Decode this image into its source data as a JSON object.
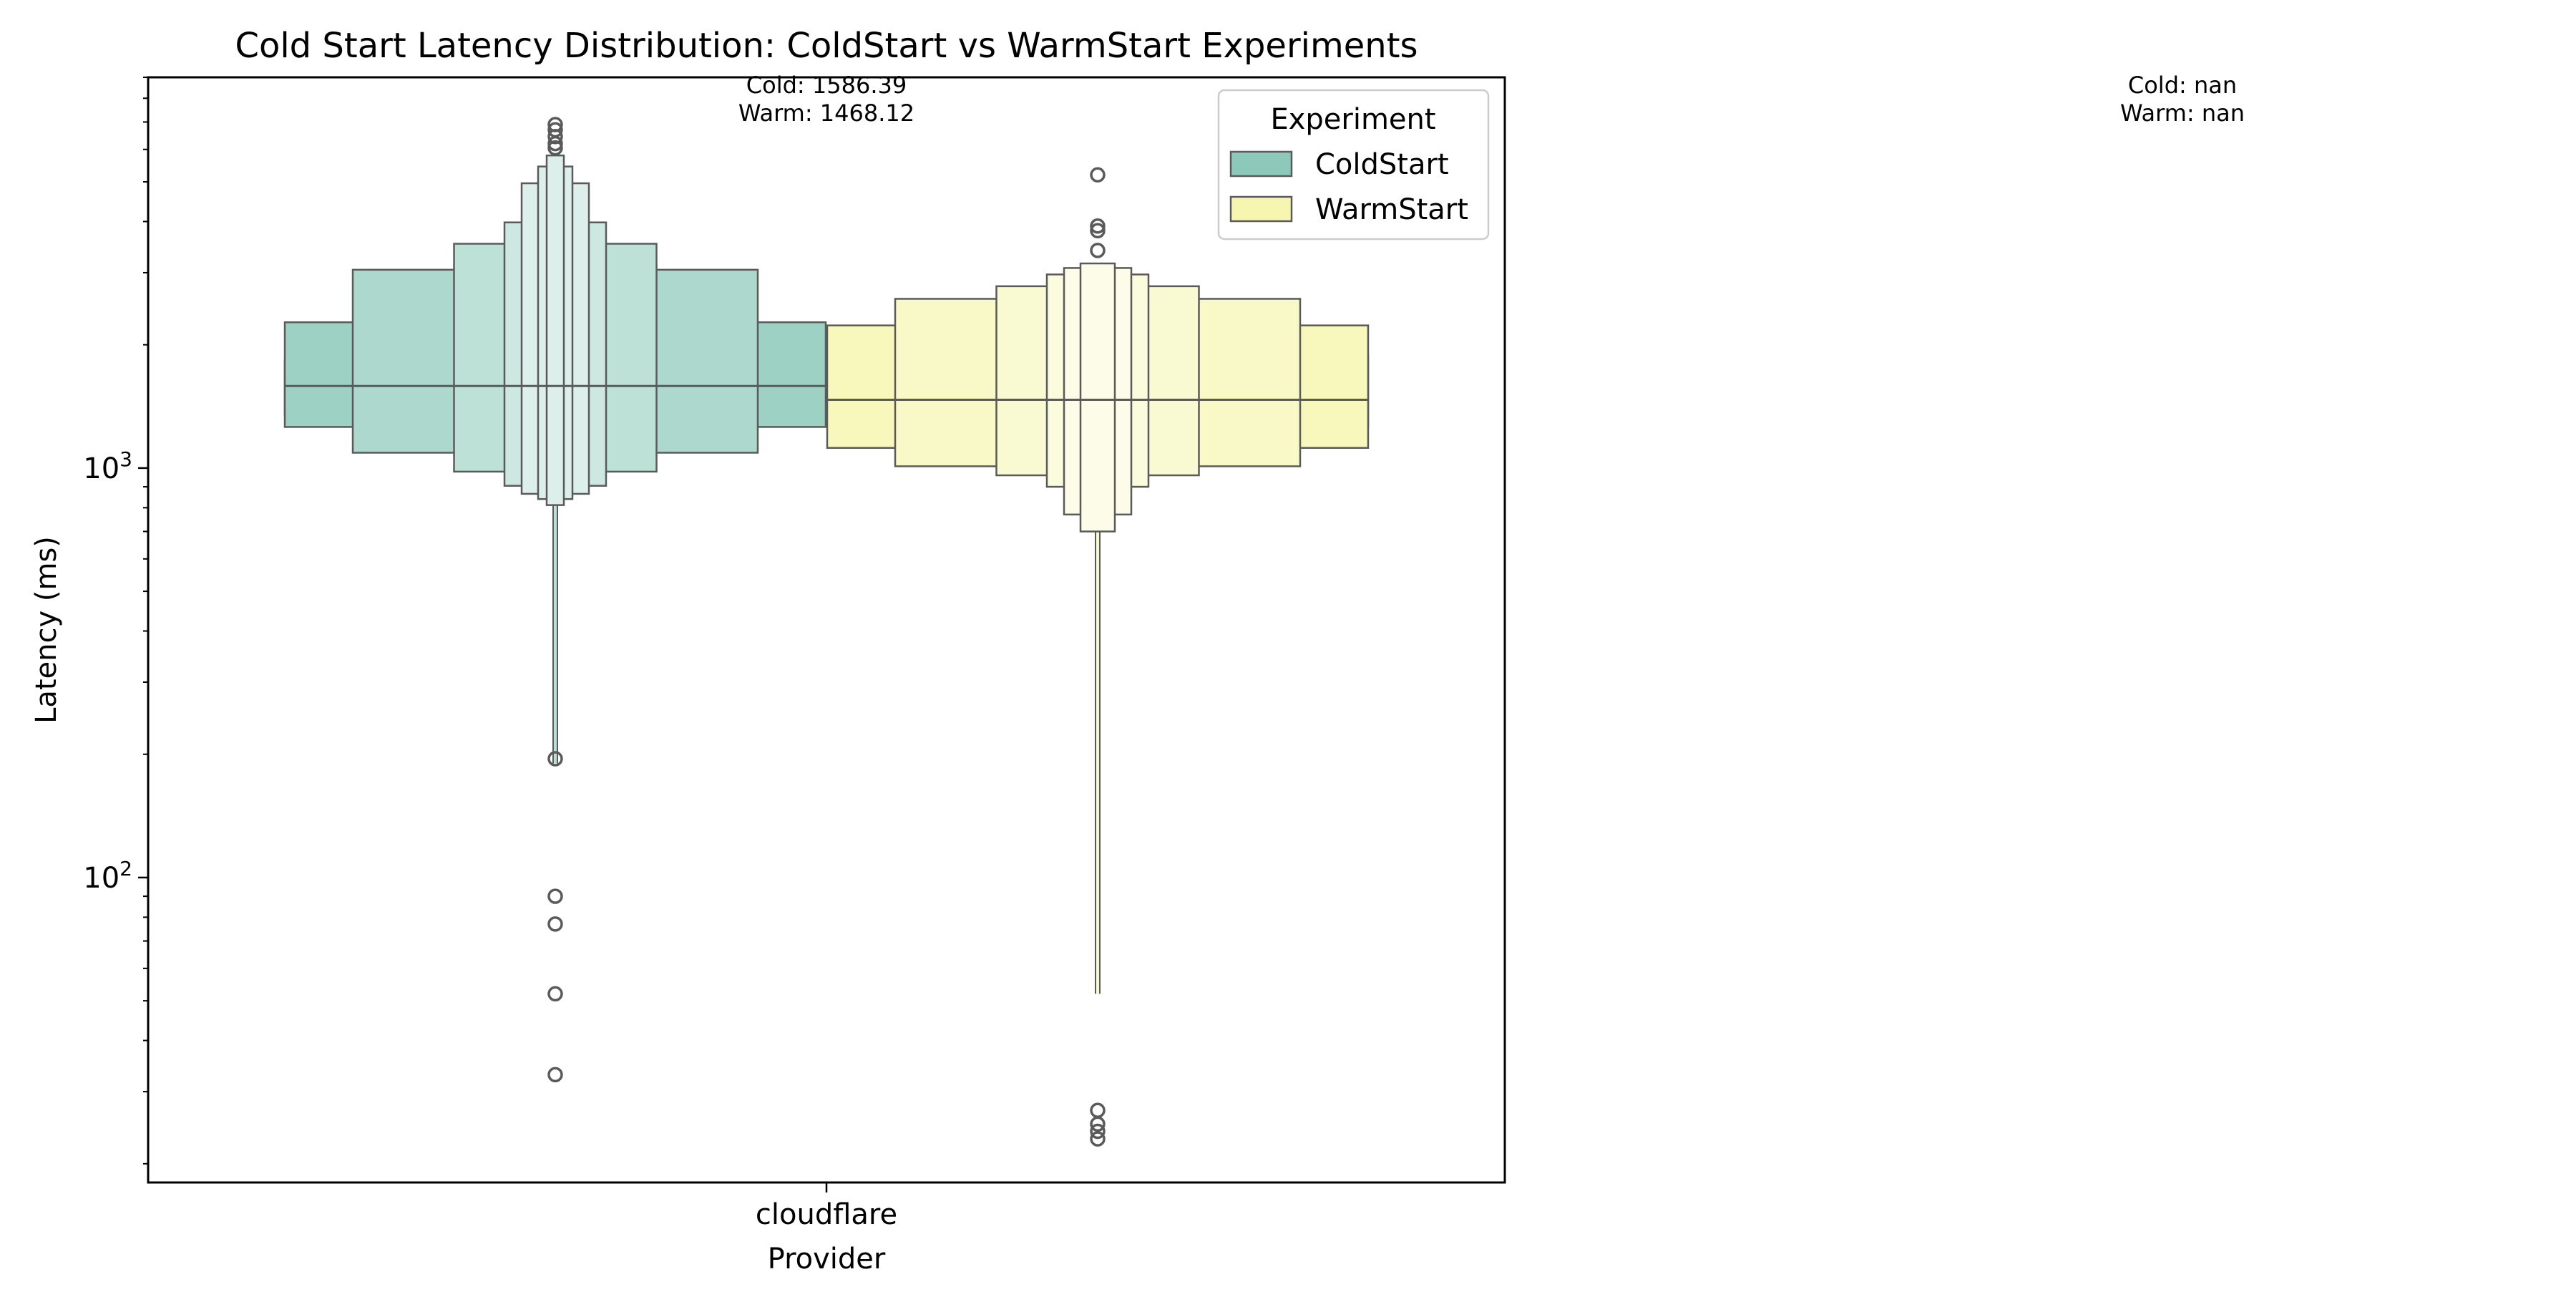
{
  "chart_data": {
    "type": "boxen",
    "title": "Cold Start Latency Distribution: ColdStart vs WarmStart Experiments",
    "xlabel": "Provider",
    "ylabel": "Latency (ms)",
    "y_scale": "log",
    "ylim": [
      18,
      9000
    ],
    "categories": [
      "cloudflare"
    ],
    "y_ticks": [
      {
        "value": 100,
        "base": "10",
        "exp": "2"
      },
      {
        "value": 1000,
        "base": "10",
        "exp": "3"
      }
    ],
    "legend": {
      "title": "Experiment",
      "placement": "top-right"
    },
    "colors": {
      "ColdStart": "#8DC9BA",
      "WarmStart": "#F7F6B1",
      "edge": "#5a5a5a"
    },
    "series": [
      {
        "name": "ColdStart",
        "median": 1586.39,
        "boxes": [
          [
            1345,
            1830
          ],
          [
            1260,
            2270
          ],
          [
            1090,
            3050
          ],
          [
            980,
            3530
          ],
          [
            905,
            3980
          ],
          [
            865,
            4960
          ],
          [
            840,
            5450
          ],
          [
            812,
            5800
          ]
        ],
        "whisker": [
          190,
          812
        ],
        "outliers": [
          195,
          90,
          77,
          52,
          33,
          6050,
          6200,
          6450,
          6700,
          6900
        ]
      },
      {
        "name": "WarmStart",
        "median": 1468.12,
        "boxes": [
          [
            1265,
            1880
          ],
          [
            1120,
            2230
          ],
          [
            1010,
            2590
          ],
          [
            960,
            2780
          ],
          [
            900,
            2970
          ],
          [
            770,
            3080
          ],
          [
            700,
            3160
          ]
        ],
        "whisker": [
          52,
          700
        ],
        "outliers": [
          27,
          25,
          24,
          23,
          3400,
          3800,
          3900,
          5200
        ]
      }
    ],
    "annotations": [
      {
        "id": "a1",
        "lines": [
          "Cold: 1586.39",
          "Warm: 1468.12"
        ]
      },
      {
        "id": "a2",
        "lines": [
          "Cold: nan",
          "Warm: nan"
        ]
      }
    ]
  }
}
